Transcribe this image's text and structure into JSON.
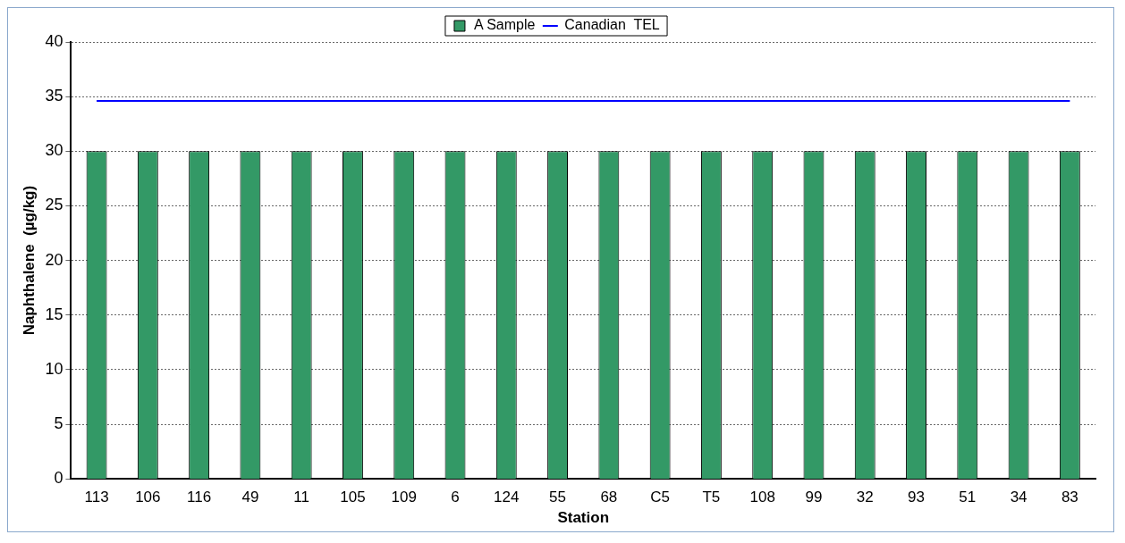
{
  "chart_data": {
    "type": "bar",
    "xlabel": "Station",
    "ylabel": "Naphthalene  (µg/kg)",
    "categories": [
      "113",
      "106",
      "116",
      "49",
      "11",
      "105",
      "109",
      "6",
      "124",
      "55",
      "68",
      "C5",
      "T5",
      "108",
      "99",
      "32",
      "93",
      "51",
      "34",
      "83"
    ],
    "series": [
      {
        "name": "A Sample",
        "color": "#339966",
        "values": [
          30,
          30,
          30,
          30,
          30,
          30,
          30,
          30,
          30,
          30,
          30,
          30,
          30,
          30,
          30,
          30,
          30,
          30,
          30,
          30
        ]
      },
      {
        "name": "Canadian  TEL",
        "type": "line",
        "color": "#0000ff",
        "marker": "none",
        "values": [
          34.6,
          34.6,
          34.6,
          34.6,
          34.6,
          34.6,
          34.6,
          34.6,
          34.6,
          34.6,
          34.6,
          34.6,
          34.6,
          34.6,
          34.6,
          34.6,
          34.6,
          34.6,
          34.6,
          34.6
        ]
      }
    ],
    "ylim": [
      0,
      40
    ],
    "yticks": [
      0,
      5,
      10,
      15,
      20,
      25,
      30,
      35,
      40
    ],
    "grid": "y",
    "legend": "top"
  }
}
